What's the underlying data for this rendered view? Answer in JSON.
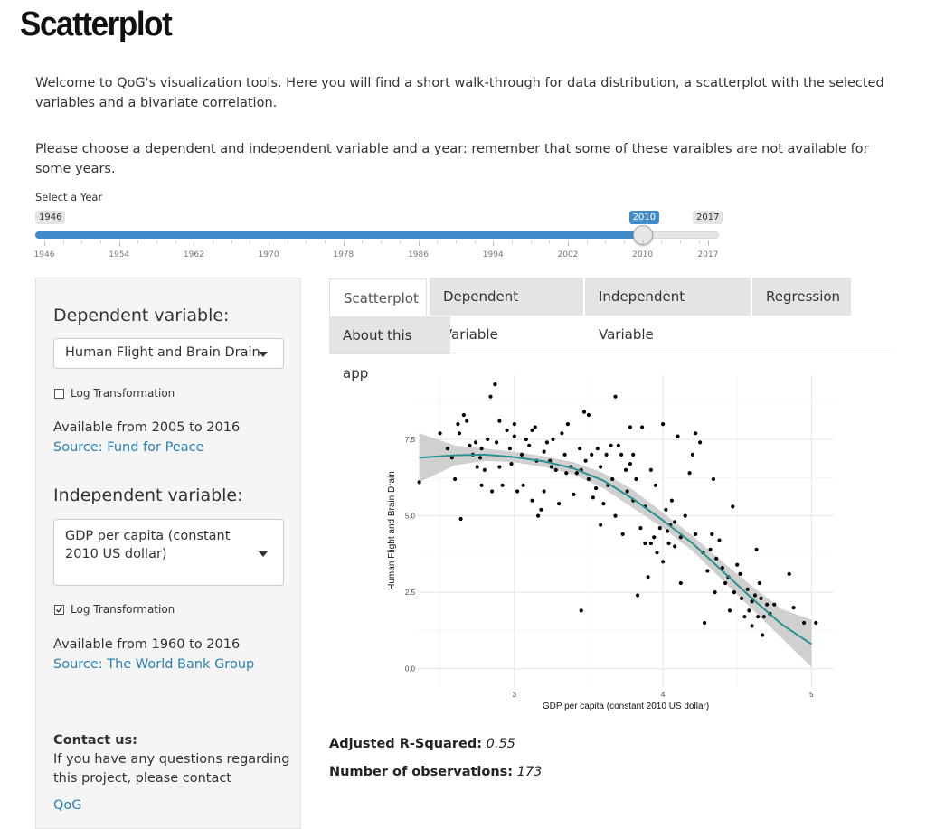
{
  "page": {
    "title": "Scatterplot",
    "intro1": "Welcome to QoG's visualization tools. Here you will find a short walk-through for data distribution, a scatterplot with the selected variables and a bivariate correlation.",
    "intro2": "Please choose a dependent and independent variable and a year: remember that some of these varaibles are not available for some years."
  },
  "slider": {
    "label": "Select a Year",
    "min_label": "1946",
    "max_label": "2017",
    "value_label": "2010",
    "min": 1946,
    "max": 2017,
    "value": 2010,
    "ticks": [
      "1946",
      "1954",
      "1962",
      "1970",
      "1978",
      "1986",
      "1994",
      "2002",
      "2010",
      "2017"
    ],
    "accent": "#428bca"
  },
  "sidebar": {
    "dep_heading": "Dependent variable:",
    "dep_select": "Human Flight and Brain Drain",
    "dep_log_label": "Log Transformation",
    "dep_log_checked": false,
    "dep_available": "Available from 2005 to 2016",
    "dep_source": "Source: Fund for Peace",
    "ind_heading": "Independent variable:",
    "ind_select": "GDP per capita (constant 2010 US dollar)",
    "ind_log_label": "Log Transformation",
    "ind_log_checked": true,
    "ind_available": "Available from 1960 to 2016",
    "ind_source": "Source: The World Bank Group",
    "contact_heading": "Contact us:",
    "contact_text": "If you have any questions regarding this project, please contact",
    "contact_link": "QoG"
  },
  "tabs": [
    {
      "label": "Scatterplot",
      "active": true
    },
    {
      "label": "Dependent Variable",
      "active": false
    },
    {
      "label": "Independent Variable",
      "active": false
    },
    {
      "label": "Regression",
      "active": false
    },
    {
      "label": "About this app",
      "active": false
    }
  ],
  "stats": {
    "r2_label": "Adjusted R-Squared:",
    "r2_value": "0.55",
    "n_label": "Number of observations:",
    "n_value": "173"
  },
  "chart_data": {
    "type": "scatter",
    "xlabel": "GDP per capita (constant 2010 US dollar)",
    "ylabel": "Human Flight and Brain Drain",
    "xlim": [
      2.35,
      5.15
    ],
    "ylim": [
      -0.6,
      9.6
    ],
    "x_ticks": [
      "3",
      "4",
      "5"
    ],
    "y_ticks": [
      "0.0",
      "2.5",
      "5.0",
      "7.5"
    ],
    "grid": true,
    "point_color": "#000000",
    "fit_color": "#2a9090",
    "band_color": "#c8c8c8",
    "fit_curve": [
      [
        2.36,
        6.9
      ],
      [
        2.6,
        6.98
      ],
      [
        2.8,
        7.0
      ],
      [
        3.0,
        6.92
      ],
      [
        3.2,
        6.78
      ],
      [
        3.4,
        6.55
      ],
      [
        3.6,
        6.15
      ],
      [
        3.8,
        5.55
      ],
      [
        4.0,
        4.85
      ],
      [
        4.2,
        4.1
      ],
      [
        4.4,
        3.2
      ],
      [
        4.6,
        2.3
      ],
      [
        4.8,
        1.45
      ],
      [
        5.0,
        0.8
      ]
    ],
    "band_upper": [
      [
        2.36,
        7.7
      ],
      [
        2.6,
        7.3
      ],
      [
        2.8,
        7.2
      ],
      [
        3.0,
        7.1
      ],
      [
        3.2,
        6.95
      ],
      [
        3.4,
        6.75
      ],
      [
        3.6,
        6.4
      ],
      [
        3.8,
        5.85
      ],
      [
        4.0,
        5.1
      ],
      [
        4.2,
        4.35
      ],
      [
        4.4,
        3.5
      ],
      [
        4.6,
        2.7
      ],
      [
        4.8,
        1.95
      ],
      [
        5.0,
        1.6
      ]
    ],
    "band_lower": [
      [
        5.0,
        0.05
      ],
      [
        4.8,
        1.0
      ],
      [
        4.6,
        1.95
      ],
      [
        4.4,
        2.9
      ],
      [
        4.2,
        3.85
      ],
      [
        4.0,
        4.6
      ],
      [
        3.8,
        5.25
      ],
      [
        3.6,
        5.9
      ],
      [
        3.4,
        6.35
      ],
      [
        3.2,
        6.6
      ],
      [
        3.0,
        6.75
      ],
      [
        2.8,
        6.8
      ],
      [
        2.6,
        6.65
      ],
      [
        2.36,
        6.1
      ]
    ],
    "points": [
      [
        2.36,
        6.1
      ],
      [
        2.5,
        7.7
      ],
      [
        2.55,
        7.2
      ],
      [
        2.58,
        6.9
      ],
      [
        2.6,
        6.2
      ],
      [
        2.62,
        8.0
      ],
      [
        2.63,
        7.7
      ],
      [
        2.64,
        4.9
      ],
      [
        2.66,
        8.3
      ],
      [
        2.68,
        8.1
      ],
      [
        2.7,
        7.3
      ],
      [
        2.72,
        7.0
      ],
      [
        2.74,
        7.4
      ],
      [
        2.75,
        6.6
      ],
      [
        2.77,
        6.9
      ],
      [
        2.78,
        7.2
      ],
      [
        2.78,
        6.0
      ],
      [
        2.8,
        6.5
      ],
      [
        2.82,
        7.5
      ],
      [
        2.84,
        8.9
      ],
      [
        2.85,
        5.8
      ],
      [
        2.87,
        9.3
      ],
      [
        2.88,
        7.4
      ],
      [
        2.9,
        6.6
      ],
      [
        2.9,
        8.1
      ],
      [
        2.92,
        6.0
      ],
      [
        2.95,
        7.8
      ],
      [
        2.97,
        7.2
      ],
      [
        2.98,
        6.7
      ],
      [
        3.0,
        7.6
      ],
      [
        3.0,
        8.0
      ],
      [
        3.02,
        5.8
      ],
      [
        3.05,
        7.0
      ],
      [
        3.06,
        6.0
      ],
      [
        3.08,
        7.5
      ],
      [
        3.1,
        7.3
      ],
      [
        3.12,
        7.8
      ],
      [
        3.12,
        5.5
      ],
      [
        3.14,
        7.9
      ],
      [
        3.15,
        6.8
      ],
      [
        3.16,
        5.0
      ],
      [
        3.18,
        5.2
      ],
      [
        3.2,
        5.8
      ],
      [
        3.2,
        7.1
      ],
      [
        3.22,
        7.4
      ],
      [
        3.24,
        6.8
      ],
      [
        3.25,
        6.6
      ],
      [
        3.26,
        7.5
      ],
      [
        3.28,
        6.5
      ],
      [
        3.3,
        5.4
      ],
      [
        3.32,
        7.7
      ],
      [
        3.34,
        7.0
      ],
      [
        3.35,
        6.4
      ],
      [
        3.36,
        8.0
      ],
      [
        3.38,
        6.6
      ],
      [
        3.4,
        5.7
      ],
      [
        3.42,
        6.4
      ],
      [
        3.44,
        7.2
      ],
      [
        3.45,
        1.9
      ],
      [
        3.45,
        6.5
      ],
      [
        3.47,
        8.4
      ],
      [
        3.48,
        6.8
      ],
      [
        3.5,
        6.2
      ],
      [
        3.5,
        8.3
      ],
      [
        3.52,
        7.0
      ],
      [
        3.53,
        5.6
      ],
      [
        3.55,
        5.9
      ],
      [
        3.56,
        7.2
      ],
      [
        3.58,
        6.6
      ],
      [
        3.58,
        4.7
      ],
      [
        3.6,
        5.4
      ],
      [
        3.62,
        7.0
      ],
      [
        3.63,
        6.0
      ],
      [
        3.65,
        7.3
      ],
      [
        3.66,
        6.2
      ],
      [
        3.68,
        8.9
      ],
      [
        3.68,
        5.0
      ],
      [
        3.7,
        7.3
      ],
      [
        3.72,
        7.0
      ],
      [
        3.73,
        4.4
      ],
      [
        3.75,
        6.5
      ],
      [
        3.76,
        5.8
      ],
      [
        3.78,
        7.9
      ],
      [
        3.78,
        6.7
      ],
      [
        3.8,
        5.5
      ],
      [
        3.8,
        7.0
      ],
      [
        3.82,
        6.2
      ],
      [
        3.83,
        2.4
      ],
      [
        3.85,
        4.6
      ],
      [
        3.86,
        7.9
      ],
      [
        3.88,
        5.3
      ],
      [
        3.88,
        4.1
      ],
      [
        3.9,
        3.0
      ],
      [
        3.92,
        4.1
      ],
      [
        3.92,
        6.5
      ],
      [
        3.94,
        4.3
      ],
      [
        3.95,
        6.0
      ],
      [
        3.96,
        3.8
      ],
      [
        3.98,
        4.6
      ],
      [
        4.0,
        3.5
      ],
      [
        4.0,
        8.0
      ],
      [
        4.02,
        5.2
      ],
      [
        4.03,
        4.5
      ],
      [
        4.04,
        4.1
      ],
      [
        4.05,
        4.7
      ],
      [
        4.06,
        5.5
      ],
      [
        4.08,
        4.0
      ],
      [
        4.08,
        4.8
      ],
      [
        4.1,
        7.6
      ],
      [
        4.12,
        2.8
      ],
      [
        4.12,
        4.3
      ],
      [
        4.15,
        5.0
      ],
      [
        4.18,
        6.4
      ],
      [
        4.2,
        7.0
      ],
      [
        4.22,
        7.7
      ],
      [
        4.22,
        4.4
      ],
      [
        4.25,
        7.4
      ],
      [
        4.27,
        3.8
      ],
      [
        4.28,
        1.5
      ],
      [
        4.3,
        3.2
      ],
      [
        4.32,
        3.9
      ],
      [
        4.33,
        4.4
      ],
      [
        4.34,
        6.2
      ],
      [
        4.35,
        2.5
      ],
      [
        4.36,
        3.6
      ],
      [
        4.38,
        4.2
      ],
      [
        4.4,
        3.3
      ],
      [
        4.42,
        2.8
      ],
      [
        4.44,
        3.0
      ],
      [
        4.45,
        1.9
      ],
      [
        4.47,
        5.3
      ],
      [
        4.48,
        2.5
      ],
      [
        4.5,
        3.4
      ],
      [
        4.52,
        3.1
      ],
      [
        4.53,
        2.3
      ],
      [
        4.55,
        1.7
      ],
      [
        4.57,
        2.6
      ],
      [
        4.58,
        1.9
      ],
      [
        4.6,
        2.2
      ],
      [
        4.6,
        1.4
      ],
      [
        4.62,
        2.4
      ],
      [
        4.63,
        3.9
      ],
      [
        4.64,
        1.7
      ],
      [
        4.65,
        2.8
      ],
      [
        4.66,
        2.3
      ],
      [
        4.67,
        1.1
      ],
      [
        4.68,
        1.7
      ],
      [
        4.7,
        2.1
      ],
      [
        4.72,
        1.8
      ],
      [
        4.75,
        2.1
      ],
      [
        4.85,
        3.1
      ],
      [
        4.88,
        2.0
      ],
      [
        4.95,
        1.5
      ],
      [
        5.03,
        1.5
      ]
    ]
  }
}
